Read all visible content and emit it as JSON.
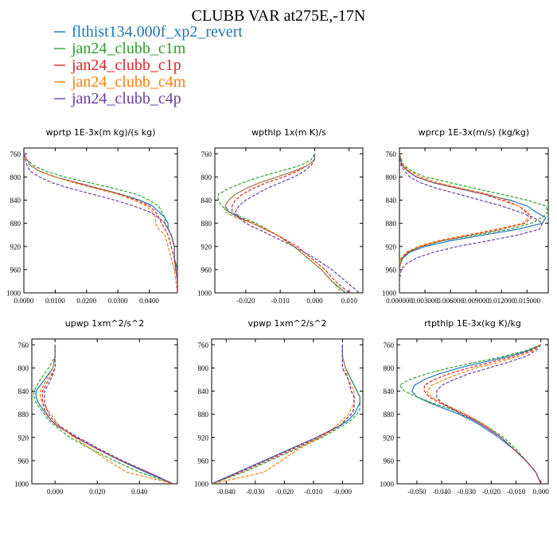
{
  "figure": {
    "title": "CLUBB VAR at275E,-17N"
  },
  "legend": [
    {
      "label": "flthist134.000f_xp2_revert",
      "color": "#1f77b4",
      "dash": "solid"
    },
    {
      "label": "jan24_clubb_c1m",
      "color": "#2ca02c",
      "dash": "dash"
    },
    {
      "label": "jan24_clubb_c1p",
      "color": "#d62728",
      "dash": "dash"
    },
    {
      "label": "jan24_clubb_c4m",
      "color": "#ff7f0e",
      "dash": "dash"
    },
    {
      "label": "jan24_clubb_c4p",
      "color": "#6b3fa0",
      "dash": "dash"
    }
  ],
  "chart_data": [
    {
      "type": "line",
      "title": "wprtp  1E-3x(m kg)/(s kg)",
      "xlim": [
        0.0,
        0.049
      ],
      "ylim": [
        1000,
        750
      ],
      "xticks": [
        "0.0000",
        "0.0100",
        "0.0200",
        "0.0300",
        "0.0400"
      ],
      "xtick_values": [
        0.0,
        0.01,
        0.02,
        0.03,
        0.04
      ],
      "yticks": [
        "760",
        "800",
        "840",
        "880",
        "920",
        "960",
        "1000"
      ],
      "ytick_values": [
        760,
        800,
        840,
        880,
        920,
        960,
        1000
      ],
      "y": [
        760,
        770,
        780,
        790,
        800,
        810,
        820,
        830,
        840,
        850,
        860,
        870,
        880,
        890,
        900,
        920,
        940,
        960,
        980,
        1000
      ],
      "series": [
        {
          "name": "flthist134.000f_xp2_revert",
          "values": [
            0.0,
            0.001,
            0.002,
            0.005,
            0.01,
            0.017,
            0.024,
            0.031,
            0.037,
            0.041,
            0.043,
            0.045,
            0.046,
            0.046,
            0.047,
            0.048,
            0.048,
            0.0485,
            0.049,
            0.049
          ]
        },
        {
          "name": "jan24_clubb_c1m",
          "values": [
            0.0,
            0.001,
            0.003,
            0.007,
            0.013,
            0.021,
            0.029,
            0.036,
            0.04,
            0.043,
            0.044,
            0.045,
            0.045,
            0.046,
            0.047,
            0.048,
            0.048,
            0.049,
            0.049,
            0.049
          ]
        },
        {
          "name": "jan24_clubb_c1p",
          "values": [
            0.0,
            0.001,
            0.002,
            0.005,
            0.01,
            0.017,
            0.024,
            0.031,
            0.036,
            0.04,
            0.042,
            0.043,
            0.044,
            0.045,
            0.046,
            0.047,
            0.048,
            0.0485,
            0.049,
            0.049
          ]
        },
        {
          "name": "jan24_clubb_c4m",
          "values": [
            0.0,
            0.001,
            0.002,
            0.005,
            0.01,
            0.016,
            0.023,
            0.03,
            0.035,
            0.039,
            0.041,
            0.042,
            0.042,
            0.043,
            0.045,
            0.046,
            0.047,
            0.048,
            0.0485,
            0.049
          ]
        },
        {
          "name": "jan24_clubb_c4p",
          "values": [
            0.0,
            0.0005,
            0.001,
            0.002,
            0.005,
            0.009,
            0.015,
            0.022,
            0.029,
            0.035,
            0.04,
            0.043,
            0.045,
            0.046,
            0.047,
            0.048,
            0.048,
            0.049,
            0.049,
            0.049
          ]
        }
      ]
    },
    {
      "type": "line",
      "title": "wpthlp  1x(m K)/s",
      "xlim": [
        -0.029,
        0.014
      ],
      "ylim": [
        1000,
        750
      ],
      "xticks": [
        "-0.020",
        "-0.010",
        "0.000",
        "0.010"
      ],
      "xtick_values": [
        -0.02,
        -0.01,
        0.0,
        0.01
      ],
      "yticks": [
        "760",
        "800",
        "840",
        "880",
        "920",
        "960",
        "1000"
      ],
      "ytick_values": [
        760,
        800,
        840,
        880,
        920,
        960,
        1000
      ],
      "y": [
        760,
        770,
        780,
        790,
        800,
        810,
        820,
        830,
        840,
        850,
        860,
        870,
        880,
        900,
        920,
        940,
        960,
        980,
        1000
      ],
      "series": [
        {
          "name": "flthist134.000f_xp2_revert",
          "values": [
            0.0,
            0.0,
            -0.002,
            -0.006,
            -0.011,
            -0.016,
            -0.02,
            -0.023,
            -0.025,
            -0.026,
            -0.025,
            -0.022,
            -0.018,
            -0.011,
            -0.006,
            -0.002,
            0.002,
            0.005,
            0.009
          ]
        },
        {
          "name": "jan24_clubb_c1m",
          "values": [
            0.0,
            -0.001,
            -0.004,
            -0.01,
            -0.016,
            -0.021,
            -0.025,
            -0.028,
            -0.028,
            -0.027,
            -0.025,
            -0.021,
            -0.017,
            -0.011,
            -0.006,
            -0.002,
            0.002,
            0.005,
            0.009
          ]
        },
        {
          "name": "jan24_clubb_c1p",
          "values": [
            0.0,
            0.0,
            -0.002,
            -0.005,
            -0.009,
            -0.014,
            -0.018,
            -0.021,
            -0.023,
            -0.024,
            -0.024,
            -0.022,
            -0.018,
            -0.011,
            -0.005,
            -0.001,
            0.003,
            0.006,
            0.01
          ]
        },
        {
          "name": "jan24_clubb_c4m",
          "values": [
            0.0,
            0.0,
            -0.002,
            -0.006,
            -0.011,
            -0.016,
            -0.02,
            -0.023,
            -0.025,
            -0.026,
            -0.026,
            -0.023,
            -0.018,
            -0.011,
            -0.006,
            -0.002,
            0.002,
            0.005,
            0.008
          ]
        },
        {
          "name": "jan24_clubb_c4p",
          "values": [
            0.0,
            0.0,
            -0.001,
            -0.003,
            -0.006,
            -0.01,
            -0.014,
            -0.017,
            -0.02,
            -0.022,
            -0.023,
            -0.022,
            -0.02,
            -0.013,
            -0.006,
            0.0,
            0.005,
            0.009,
            0.013
          ]
        }
      ]
    },
    {
      "type": "line",
      "title": "wprcp  1E-3x(m/s) (kg/kg)",
      "xlim": [
        0.0,
        0.0175
      ],
      "ylim": [
        1000,
        750
      ],
      "xticks": [
        "0.000000",
        "0.003000",
        "0.006000",
        "0.009000",
        "0.012000",
        "0.015000"
      ],
      "xtick_values": [
        0.0,
        0.003,
        0.006,
        0.009,
        0.012,
        0.015
      ],
      "yticks": [
        "760",
        "800",
        "840",
        "880",
        "920",
        "960",
        "1000"
      ],
      "ytick_values": [
        760,
        800,
        840,
        880,
        920,
        960,
        1000
      ],
      "y": [
        760,
        780,
        790,
        800,
        810,
        820,
        830,
        840,
        850,
        860,
        870,
        880,
        890,
        900,
        910,
        920,
        930,
        940,
        950,
        960,
        980,
        1000
      ],
      "series": [
        {
          "name": "flthist134.000f_xp2_revert",
          "values": [
            0.0,
            0.0003,
            0.001,
            0.002,
            0.004,
            0.007,
            0.01,
            0.013,
            0.015,
            0.016,
            0.0172,
            0.0168,
            0.014,
            0.01,
            0.006,
            0.003,
            0.0012,
            0.0004,
            0.0001,
            0.0,
            0.0,
            0.0
          ]
        },
        {
          "name": "jan24_clubb_c1m",
          "values": [
            0.0,
            0.0005,
            0.0015,
            0.003,
            0.006,
            0.009,
            0.012,
            0.015,
            0.0172,
            0.0175,
            0.0168,
            0.0155,
            0.013,
            0.009,
            0.005,
            0.0025,
            0.001,
            0.0003,
            0.0001,
            0.0,
            0.0,
            0.0
          ]
        },
        {
          "name": "jan24_clubb_c1p",
          "values": [
            0.0,
            0.0003,
            0.001,
            0.002,
            0.004,
            0.007,
            0.01,
            0.012,
            0.014,
            0.015,
            0.0155,
            0.0148,
            0.012,
            0.0085,
            0.005,
            0.0025,
            0.001,
            0.0003,
            0.0001,
            0.0,
            0.0,
            0.0
          ]
        },
        {
          "name": "jan24_clubb_c4m",
          "values": [
            0.0,
            0.0004,
            0.0012,
            0.0025,
            0.0045,
            0.0075,
            0.0105,
            0.0125,
            0.014,
            0.0148,
            0.0152,
            0.0145,
            0.0115,
            0.008,
            0.0045,
            0.0022,
            0.0008,
            0.0002,
            0.0,
            0.0,
            0.0,
            0.0
          ]
        },
        {
          "name": "jan24_clubb_c4p",
          "values": [
            0.0,
            0.0002,
            0.0006,
            0.0012,
            0.0025,
            0.0045,
            0.007,
            0.0095,
            0.012,
            0.014,
            0.0158,
            0.0168,
            0.0165,
            0.014,
            0.0105,
            0.0068,
            0.004,
            0.002,
            0.0008,
            0.0002,
            0.0,
            0.0
          ]
        }
      ]
    },
    {
      "type": "line",
      "title": "upwp  1xm^2/s^2",
      "xlim": [
        -0.011,
        0.058
      ],
      "ylim": [
        1000,
        750
      ],
      "xticks": [
        "0.000",
        "0.020",
        "0.040"
      ],
      "xtick_values": [
        0.0,
        0.02,
        0.04
      ],
      "yticks": [
        "760",
        "800",
        "840",
        "880",
        "920",
        "960",
        "1000"
      ],
      "ytick_values": [
        760,
        800,
        840,
        880,
        920,
        960,
        1000
      ],
      "y": [
        760,
        780,
        800,
        820,
        840,
        850,
        860,
        870,
        880,
        890,
        900,
        920,
        940,
        960,
        980,
        1000
      ],
      "series": [
        {
          "name": "flthist134.000f_xp2_revert",
          "values": [
            0.0,
            0.0,
            -0.001,
            -0.005,
            -0.009,
            -0.009,
            -0.008,
            -0.006,
            -0.004,
            -0.002,
            0.001,
            0.01,
            0.02,
            0.031,
            0.043,
            0.056
          ]
        },
        {
          "name": "jan24_clubb_c1m",
          "values": [
            0.0,
            0.0,
            -0.003,
            -0.007,
            -0.01,
            -0.01,
            -0.009,
            -0.007,
            -0.005,
            -0.003,
            0.0,
            0.007,
            0.017,
            0.028,
            0.04,
            0.056
          ]
        },
        {
          "name": "jan24_clubb_c1p",
          "values": [
            0.0,
            0.0,
            0.0,
            -0.003,
            -0.006,
            -0.006,
            -0.006,
            -0.005,
            -0.004,
            -0.002,
            0.001,
            0.01,
            0.02,
            0.031,
            0.044,
            0.056
          ]
        },
        {
          "name": "jan24_clubb_c4m",
          "values": [
            0.0,
            0.0,
            -0.001,
            -0.004,
            -0.007,
            -0.007,
            -0.006,
            -0.004,
            -0.002,
            0.0,
            0.002,
            0.009,
            0.017,
            0.025,
            0.034,
            0.056
          ]
        },
        {
          "name": "jan24_clubb_c4p",
          "values": [
            0.0,
            0.0,
            0.0,
            -0.002,
            -0.005,
            -0.005,
            -0.005,
            -0.004,
            -0.003,
            -0.001,
            0.002,
            0.011,
            0.021,
            0.032,
            0.044,
            0.056
          ]
        }
      ]
    },
    {
      "type": "line",
      "title": "vpwp  1xm^2/s^2",
      "xlim": [
        -0.045,
        0.007
      ],
      "ylim": [
        1000,
        750
      ],
      "xticks": [
        "-0.040",
        "-0.030",
        "-0.020",
        "-0.010",
        "-0.000"
      ],
      "xtick_values": [
        -0.04,
        -0.03,
        -0.02,
        -0.01,
        0.0
      ],
      "yticks": [
        "760",
        "800",
        "840",
        "880",
        "920",
        "960",
        "1000"
      ],
      "ytick_values": [
        760,
        800,
        840,
        880,
        920,
        960,
        1000
      ],
      "y": [
        760,
        780,
        800,
        820,
        840,
        850,
        860,
        870,
        880,
        890,
        900,
        920,
        940,
        960,
        980,
        1000
      ],
      "series": [
        {
          "name": "flthist134.000f_xp2_revert",
          "values": [
            0.0,
            0.0,
            0.001,
            0.003,
            0.005,
            0.006,
            0.006,
            0.005,
            0.004,
            0.002,
            -0.001,
            -0.009,
            -0.018,
            -0.027,
            -0.036,
            -0.045
          ]
        },
        {
          "name": "jan24_clubb_c1m",
          "values": [
            0.0,
            0.0,
            0.001,
            0.003,
            0.005,
            0.006,
            0.006,
            0.006,
            0.005,
            0.003,
            0.0,
            -0.007,
            -0.016,
            -0.025,
            -0.034,
            -0.045
          ]
        },
        {
          "name": "jan24_clubb_c1p",
          "values": [
            0.0,
            0.0,
            0.0,
            0.002,
            0.003,
            0.004,
            0.004,
            0.004,
            0.003,
            0.001,
            -0.001,
            -0.008,
            -0.017,
            -0.026,
            -0.035,
            -0.045
          ]
        },
        {
          "name": "jan24_clubb_c4m",
          "values": [
            0.0,
            0.0,
            0.001,
            0.002,
            0.004,
            0.004,
            0.004,
            0.003,
            0.002,
            0.0,
            -0.002,
            -0.008,
            -0.015,
            -0.021,
            -0.027,
            -0.045
          ]
        },
        {
          "name": "jan24_clubb_c4p",
          "values": [
            0.0,
            0.0,
            0.0,
            0.002,
            0.003,
            0.004,
            0.004,
            0.004,
            0.003,
            0.001,
            -0.001,
            -0.009,
            -0.018,
            -0.027,
            -0.036,
            -0.045
          ]
        }
      ]
    },
    {
      "type": "line",
      "title": "rtpthlp  1E-3x(kg K)/kg",
      "xlim": [
        -0.058,
        0.003
      ],
      "ylim": [
        1000,
        750
      ],
      "xticks": [
        "-0.050",
        "-0.040",
        "-0.030",
        "-0.020",
        "-0.010",
        "0.000"
      ],
      "xtick_values": [
        -0.05,
        -0.04,
        -0.03,
        -0.02,
        -0.01,
        0.0
      ],
      "yticks": [
        "760",
        "800",
        "840",
        "880",
        "920",
        "960",
        "1000"
      ],
      "ytick_values": [
        760,
        800,
        840,
        880,
        920,
        960,
        1000
      ],
      "y": [
        760,
        770,
        780,
        790,
        800,
        810,
        820,
        830,
        840,
        850,
        860,
        870,
        880,
        890,
        900,
        920,
        940,
        960,
        980,
        1000
      ],
      "series": [
        {
          "name": "flthist134.000f_xp2_revert",
          "values": [
            0.0,
            -0.005,
            -0.013,
            -0.023,
            -0.033,
            -0.041,
            -0.047,
            -0.051,
            -0.052,
            -0.05,
            -0.045,
            -0.039,
            -0.033,
            -0.028,
            -0.024,
            -0.017,
            -0.011,
            -0.006,
            -0.002,
            0.0
          ]
        },
        {
          "name": "jan24_clubb_c1m",
          "values": [
            0.0,
            -0.006,
            -0.015,
            -0.026,
            -0.037,
            -0.046,
            -0.053,
            -0.057,
            -0.055,
            -0.05,
            -0.044,
            -0.037,
            -0.031,
            -0.026,
            -0.022,
            -0.015,
            -0.01,
            -0.006,
            -0.002,
            0.0
          ]
        },
        {
          "name": "jan24_clubb_c1p",
          "values": [
            0.0,
            -0.004,
            -0.011,
            -0.02,
            -0.029,
            -0.037,
            -0.043,
            -0.047,
            -0.047,
            -0.045,
            -0.041,
            -0.036,
            -0.031,
            -0.027,
            -0.023,
            -0.016,
            -0.011,
            -0.006,
            -0.002,
            0.0
          ]
        },
        {
          "name": "jan24_clubb_c4m",
          "values": [
            0.0,
            -0.003,
            -0.009,
            -0.017,
            -0.026,
            -0.033,
            -0.039,
            -0.044,
            -0.046,
            -0.044,
            -0.04,
            -0.035,
            -0.03,
            -0.026,
            -0.022,
            -0.016,
            -0.011,
            -0.006,
            -0.002,
            0.0
          ]
        },
        {
          "name": "jan24_clubb_c4p",
          "values": [
            0.0,
            -0.002,
            -0.006,
            -0.013,
            -0.021,
            -0.029,
            -0.035,
            -0.04,
            -0.042,
            -0.042,
            -0.04,
            -0.036,
            -0.032,
            -0.027,
            -0.023,
            -0.016,
            -0.011,
            -0.006,
            -0.002,
            0.0
          ]
        }
      ]
    }
  ]
}
